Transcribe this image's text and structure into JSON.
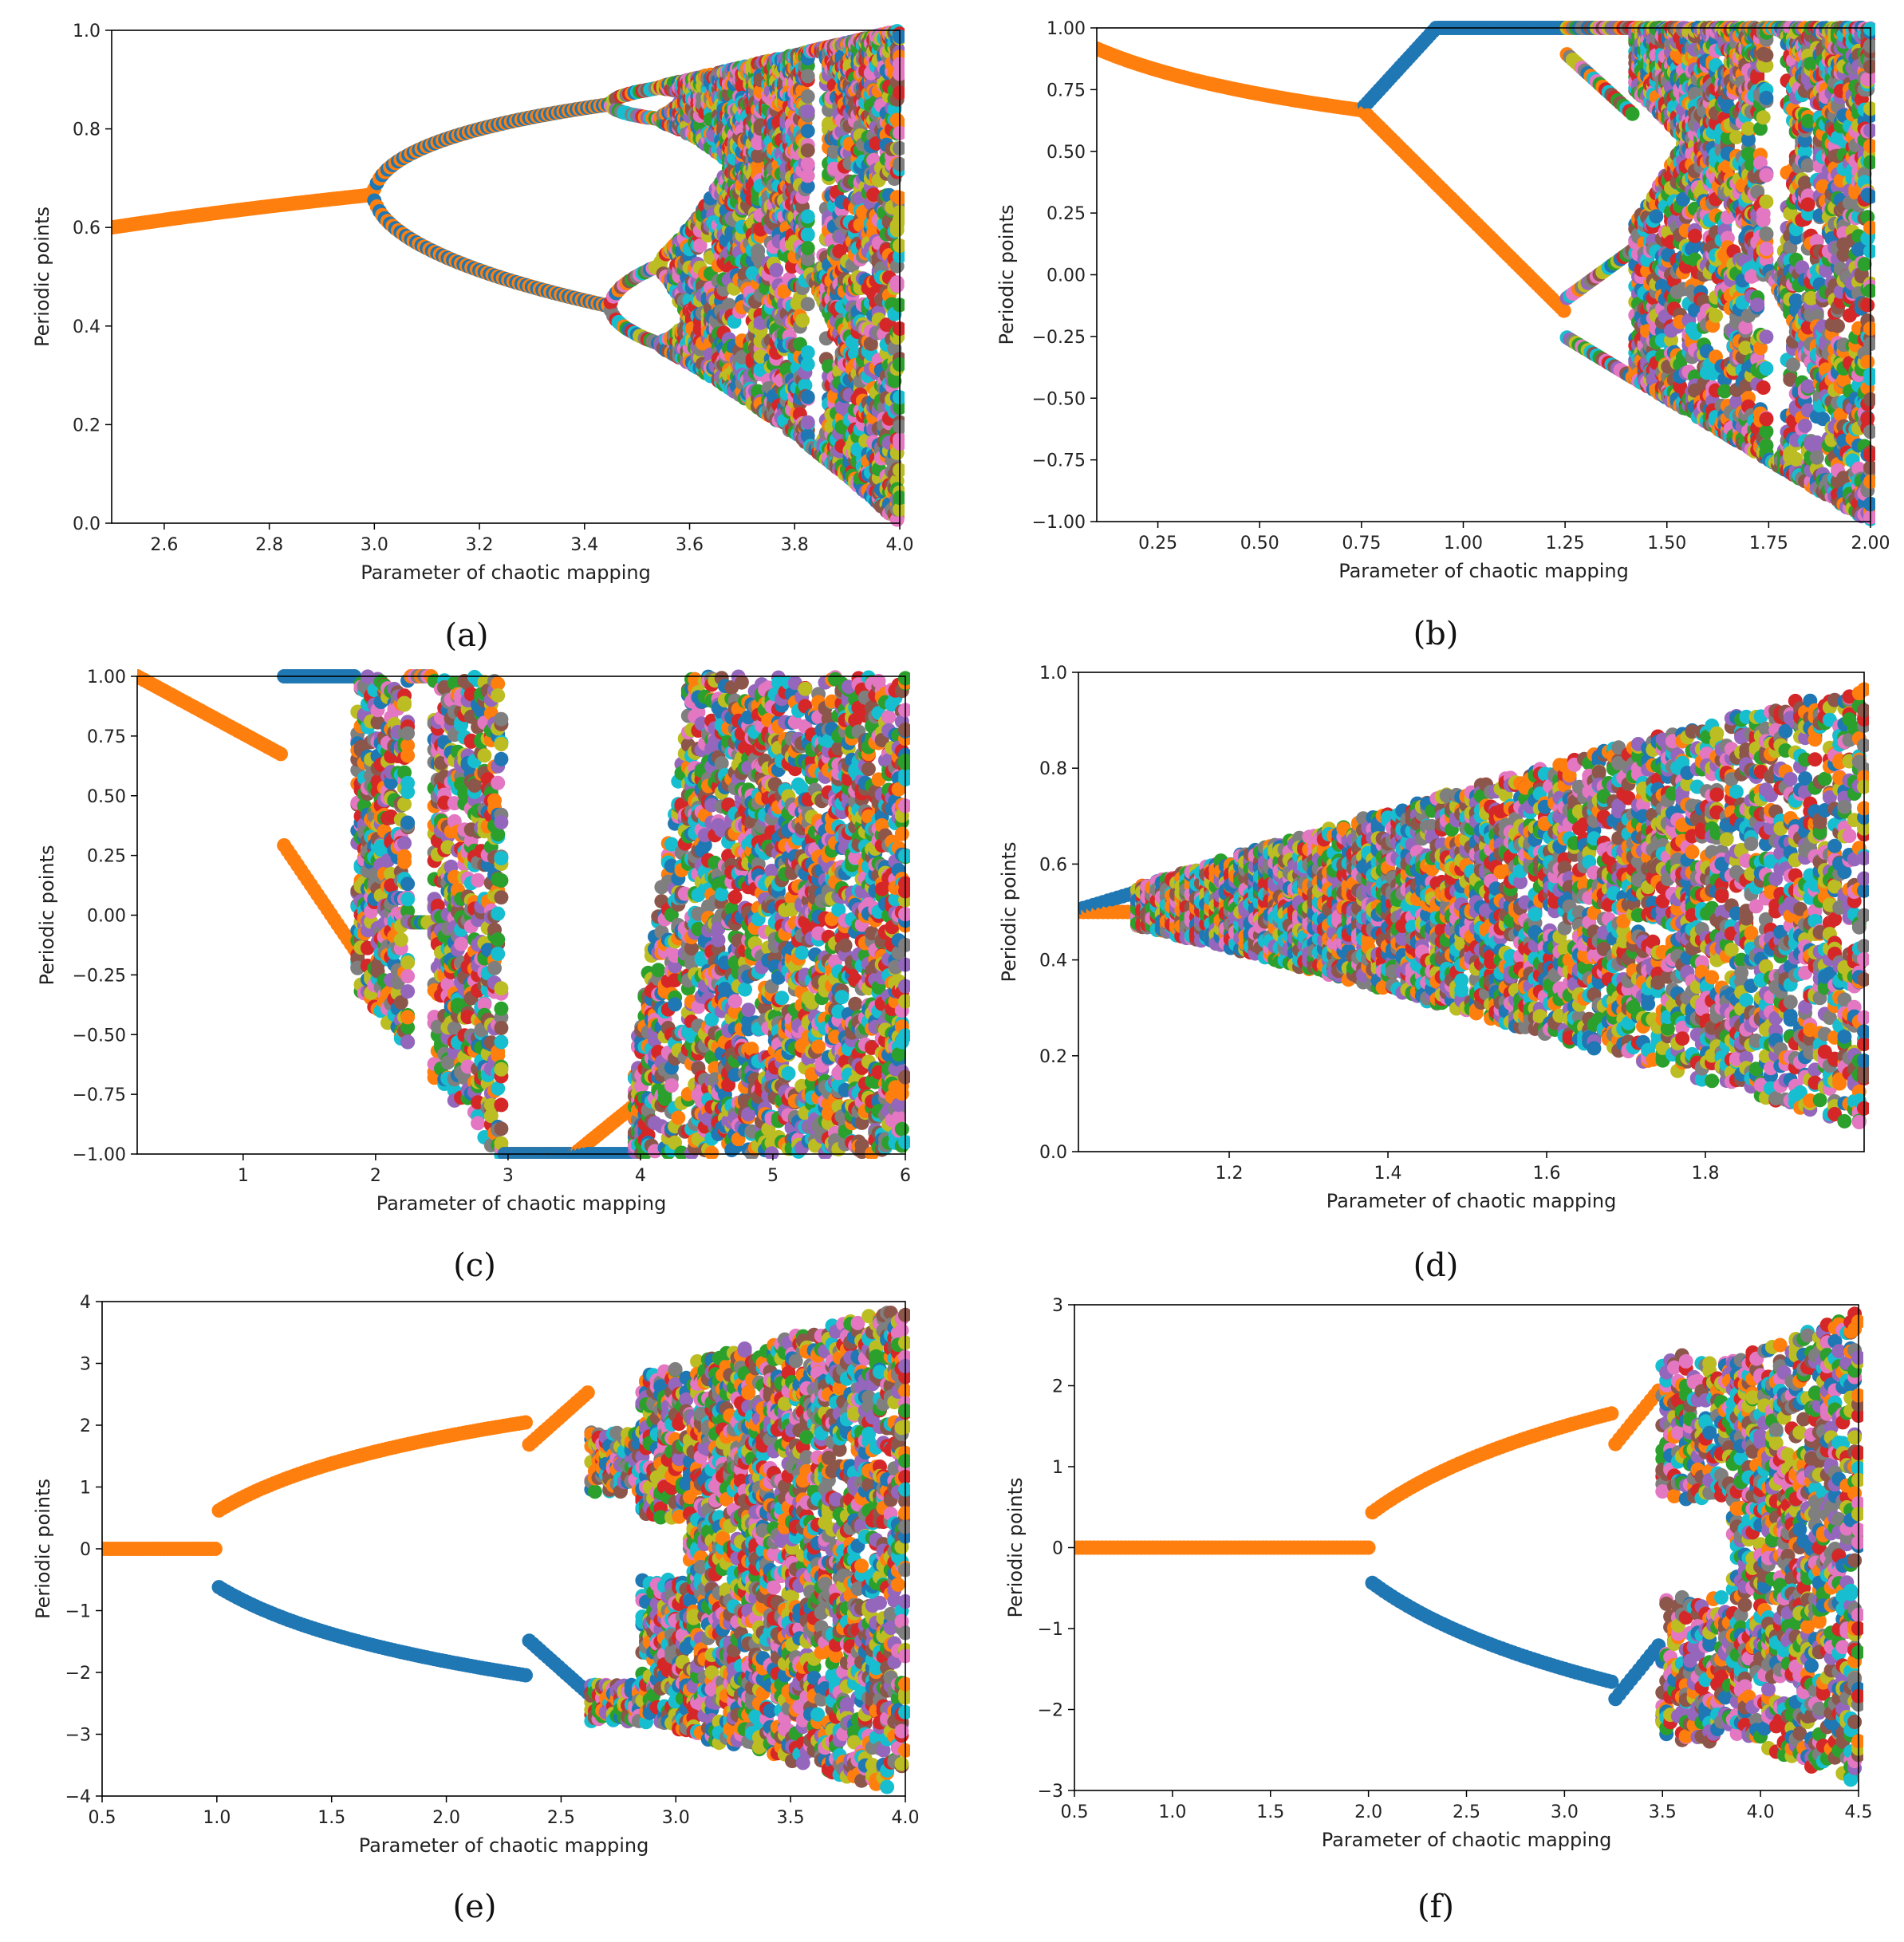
{
  "figure": {
    "palette": [
      "#1f77b4",
      "#ff7f0e",
      "#2ca02c",
      "#d62728",
      "#9467bd",
      "#8c564b",
      "#e377c2",
      "#7f7f7f",
      "#bcbd22",
      "#17becf"
    ],
    "fixed_point_color": "#ff7f0e",
    "second_branch_color": "#1f77b4",
    "frame_color": "#000000"
  },
  "chart_data": [
    {
      "id": "a",
      "type": "scatter",
      "panel_label": "(a)",
      "xlabel": "Parameter of chaotic mapping",
      "ylabel": "Periodic points",
      "xlim": [
        2.5,
        4.0
      ],
      "ylim": [
        0.0,
        1.0
      ],
      "xticks": [
        "2.6",
        "2.8",
        "3.0",
        "3.2",
        "3.4",
        "3.6",
        "3.8",
        "4.0"
      ],
      "xtick_values": [
        2.6,
        2.8,
        3.0,
        3.2,
        3.4,
        3.6,
        3.8,
        4.0
      ],
      "yticks": [
        "0.0",
        "0.2",
        "0.4",
        "0.6",
        "0.8",
        "1.0"
      ],
      "ytick_values": [
        0.0,
        0.2,
        0.4,
        0.6,
        0.8,
        1.0
      ],
      "description": "Logistic map bifurcation: single fixed point (orange) rising from 0.60 to 0.67 for r < 3.0, period-2 split (blue / orange) for 3.0–3.45, period doubling then chaos filling 0–1 from ~3.57 to 4.0",
      "model": "logistic",
      "points": 300
    },
    {
      "id": "b",
      "type": "scatter",
      "panel_label": "(b)",
      "xlabel": "Parameter of chaotic mapping",
      "ylabel": "Periodic points",
      "xlim": [
        0.1,
        2.0
      ],
      "ylim": [
        -1.0,
        1.0
      ],
      "xticks": [
        "0.25",
        "0.50",
        "0.75",
        "1.00",
        "1.25",
        "1.50",
        "1.75",
        "2.00"
      ],
      "xtick_values": [
        0.25,
        0.5,
        0.75,
        1.0,
        1.25,
        1.5,
        1.75,
        2.0
      ],
      "yticks": [
        "−1.00",
        "−0.75",
        "−0.50",
        "−0.25",
        "0.00",
        "0.25",
        "0.50",
        "0.75",
        "1.00"
      ],
      "ytick_values": [
        -1.0,
        -0.75,
        -0.5,
        -0.25,
        0.0,
        0.25,
        0.5,
        0.75,
        1.0
      ],
      "description": "Quadratic-type map: fixed point decreasing 0.91 to 0.67 for a < 0.75, split into upper branch near 1.0 and lower branch down to -0.15, chaos over -1 to 1 from ~1.42 to 2.0",
      "model": "quadratic",
      "points": 260
    },
    {
      "id": "c",
      "type": "scatter",
      "panel_label": "(c)",
      "xlabel": "Parameter of chaotic mapping",
      "ylabel": "Periodic points",
      "xlim": [
        0.2,
        6.0
      ],
      "ylim": [
        -1.0,
        1.0
      ],
      "xticks": [
        "1",
        "2",
        "3",
        "4",
        "5",
        "6"
      ],
      "xtick_values": [
        1,
        2,
        3,
        4,
        5,
        6
      ],
      "yticks": [
        "−1.00",
        "−0.75",
        "−0.50",
        "−0.25",
        "0.00",
        "0.25",
        "0.50",
        "0.75",
        "1.00"
      ],
      "ytick_values": [
        -1.0,
        -0.75,
        -0.5,
        -0.25,
        0.0,
        0.25,
        0.5,
        0.75,
        1.0
      ],
      "description": "Sine-type map: decreasing fixed point from 1.0 to 0.67, bands of chaos around 1.9–2.9, periodic window near -1 from 3.0 to 3.9, chaos over full range from 4.3 to 6.0",
      "model": "sine",
      "points": 230
    },
    {
      "id": "d",
      "type": "scatter",
      "panel_label": "(d)",
      "xlabel": "Parameter of chaotic mapping",
      "ylabel": "Periodic points",
      "xlim": [
        1.01,
        2.0
      ],
      "ylim": [
        0.0,
        1.0
      ],
      "xticks": [
        "1.2",
        "1.4",
        "1.6",
        "1.8"
      ],
      "xtick_values": [
        1.2,
        1.4,
        1.6,
        1.8
      ],
      "yticks": [
        "0.0",
        "0.2",
        "0.4",
        "0.6",
        "0.8",
        "1.0"
      ],
      "ytick_values": [
        0.0,
        0.2,
        0.4,
        0.6,
        0.8,
        1.0
      ],
      "description": "Tent-type map: symmetric wedge opening from 0.5 at 1.0 to full 0.05–0.98 range at 2.0, densely filled by chaotic points",
      "model": "tent",
      "points": 160
    },
    {
      "id": "e",
      "type": "scatter",
      "panel_label": "(e)",
      "xlabel": "Parameter of chaotic mapping",
      "ylabel": "Periodic points",
      "xlim": [
        0.5,
        4.0
      ],
      "ylim": [
        -4,
        4
      ],
      "xticks": [
        "0.5",
        "1.0",
        "1.5",
        "2.0",
        "2.5",
        "3.0",
        "3.5",
        "4.0"
      ],
      "xtick_values": [
        0.5,
        1.0,
        1.5,
        2.0,
        2.5,
        3.0,
        3.5,
        4.0
      ],
      "yticks": [
        "−4",
        "−3",
        "−2",
        "−1",
        "0",
        "1",
        "2",
        "3",
        "4"
      ],
      "ytick_values": [
        -4,
        -3,
        -2,
        -1,
        0,
        1,
        2,
        3,
        4
      ],
      "description": "Symmetric pitchfork bifurcation: zero fixed point until 1.0, symmetric branches growing to ±2.2 by 2.3, chaotic bands widening to ±3.9 from 2.65 to 4.0",
      "model": "pitchfork_e",
      "points": 220
    },
    {
      "id": "f",
      "type": "scatter",
      "panel_label": "(f)",
      "xlabel": "Parameter of chaotic mapping",
      "ylabel": "Periodic points",
      "xlim": [
        0.5,
        4.5
      ],
      "ylim": [
        -3,
        3
      ],
      "xticks": [
        "0.5",
        "1.0",
        "1.5",
        "2.0",
        "2.5",
        "3.0",
        "3.5",
        "4.0",
        "4.5"
      ],
      "xtick_values": [
        0.5,
        1.0,
        1.5,
        2.0,
        2.5,
        3.0,
        3.5,
        4.0,
        4.5
      ],
      "yticks": [
        "−3",
        "−2",
        "−1",
        "0",
        "1",
        "2",
        "3"
      ],
      "ytick_values": [
        -3,
        -2,
        -1,
        0,
        1,
        2,
        3
      ],
      "description": "Symmetric pitchfork bifurcation: zero fixed point until 2.0, branches growing to ±1.75 by 3.2, chaotic bands from 3.5 to 4.5 filling up to ±2.9",
      "model": "pitchfork_f",
      "points": 200
    }
  ]
}
